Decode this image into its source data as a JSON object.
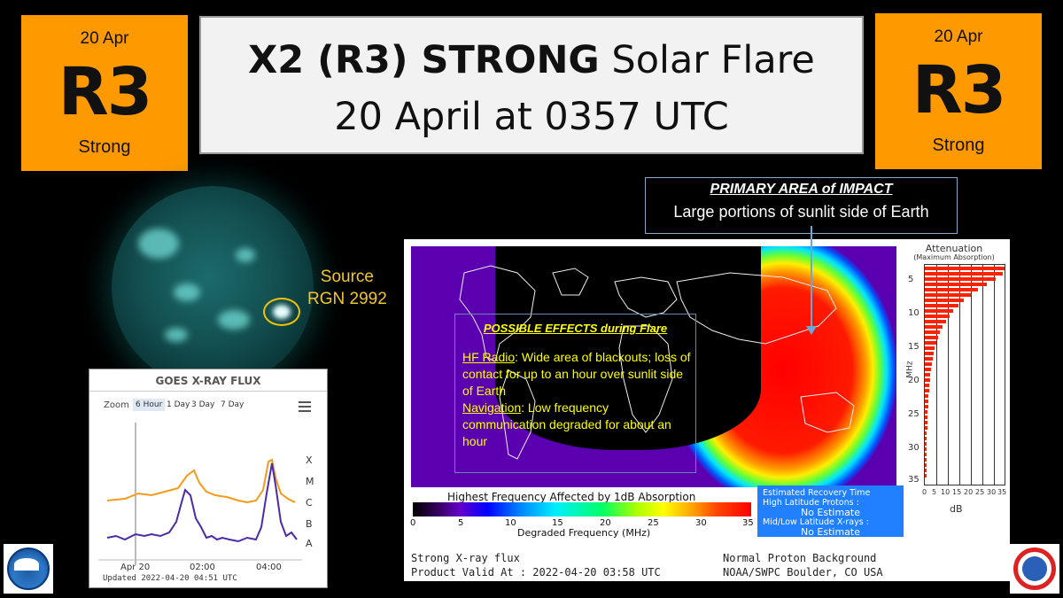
{
  "badge_left": {
    "date": "20 Apr",
    "scale": "R3",
    "word": "Strong"
  },
  "badge_right": {
    "date": "20 Apr",
    "scale": "R3",
    "word": "Strong"
  },
  "title": {
    "bold": "X2 (R3) STRONG",
    "rest": " Solar Flare",
    "line2": "20 April at 0357 UTC"
  },
  "source": {
    "line1": "Source",
    "line2": "RGN 2992"
  },
  "impact": {
    "heading": "PRIMARY AREA of IMPACT",
    "text": "Large portions of sunlit side of Earth"
  },
  "effects": {
    "heading": "POSSIBLE EFFECTS during Flare",
    "hf_label": "HF Radio",
    "hf_text": ":  Wide area of blackouts; loss of contact for up to an hour over sunlit side of Earth",
    "nav_label": "Navigation",
    "nav_text": ": Low frequency communication degraded for about an hour"
  },
  "xray": {
    "title": "GOES X-RAY FLUX",
    "zoom_label": "Zoom",
    "zoom_options": [
      "6 Hour",
      "1 Day",
      "3 Day",
      "7 Day"
    ],
    "levels": [
      "X",
      "M",
      "C",
      "B",
      "A"
    ],
    "ticks": [
      "Apr 20",
      "02:00",
      "04:00"
    ],
    "updated": "Updated 2022-04-20 04:51 UTC"
  },
  "attenuation": {
    "title": "Attenuation",
    "subtitle": "(Maximum Absorption)",
    "axis_unit": "MHz",
    "x_unit": "dB",
    "y_ticks": [
      "5",
      "10",
      "15",
      "20",
      "25",
      "30",
      "35"
    ],
    "x_ticks": [
      "0",
      "5",
      "10",
      "15",
      "20",
      "25",
      "30",
      "35"
    ]
  },
  "colorbar": {
    "title": "Highest Frequency Affected by 1dB Absorption",
    "ticks": [
      "0",
      "5",
      "10",
      "15",
      "20",
      "25",
      "30",
      "35"
    ],
    "label": "Degraded Frequency (MHz)"
  },
  "recovery": {
    "title": "Estimated Recovery Time",
    "high_label": "High Latitude Protons :",
    "high_value": "No Estimate",
    "low_label": "Mid/Low Latitude X-rays :",
    "low_value": "No Estimate"
  },
  "bottom": {
    "left1": "Strong X-ray flux",
    "left2": "Product Valid At : 2022-04-20 03:58 UTC",
    "right1": "Normal Proton Background",
    "right2": "NOAA/SWPC Boulder, CO USA"
  },
  "colors": {
    "badge": "#ff9900",
    "effects_text": "#ffff00",
    "source_text": "#f3c530",
    "recovery_bg": "#2080ff"
  }
}
